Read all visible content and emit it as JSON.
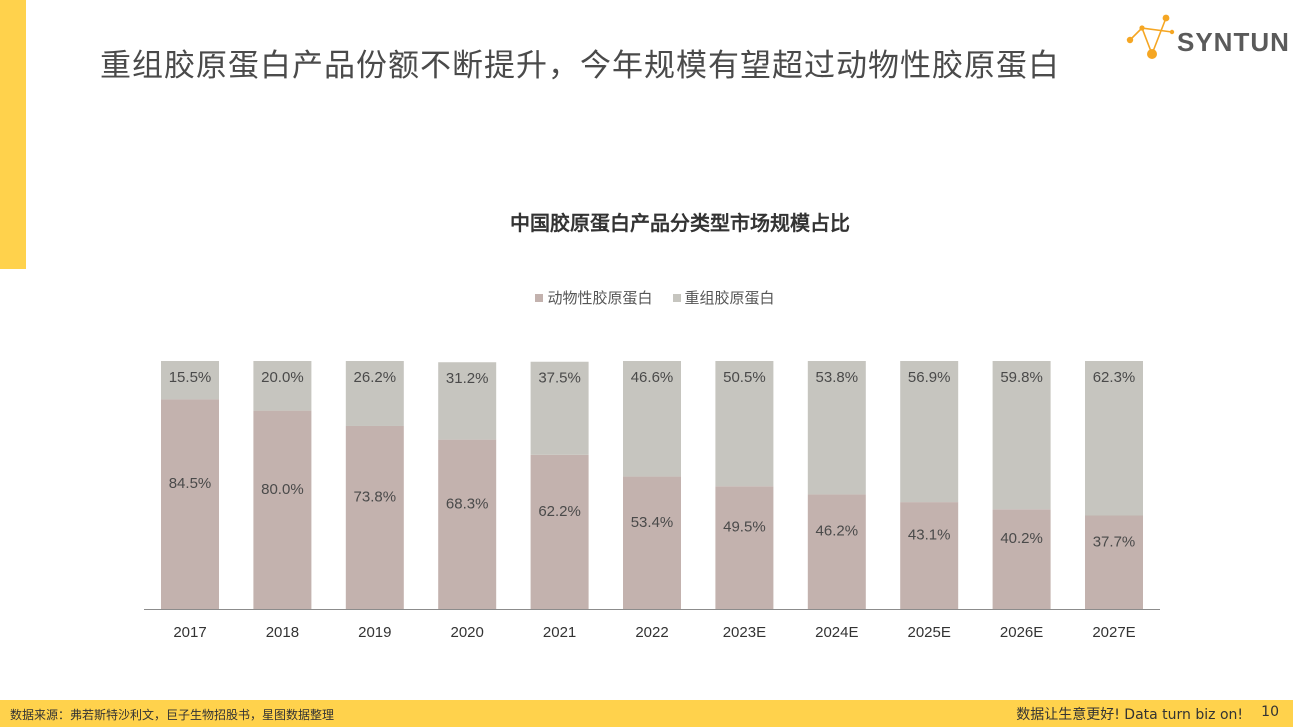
{
  "header": {
    "title": "重组胶原蛋白产品份额不断提升，今年规模有望超过动物性胶原蛋白",
    "logo_text": "SYNTUN"
  },
  "colors": {
    "accent": "#ffd24c",
    "animal": "#c3b2ae",
    "recombinant": "#c6c5bf"
  },
  "chart_data": {
    "type": "bar",
    "stacked": true,
    "title": "中国胶原蛋白产品分类型市场规模占比",
    "categories": [
      "2017",
      "2018",
      "2019",
      "2020",
      "2021",
      "2022",
      "2023E",
      "2024E",
      "2025E",
      "2026E",
      "2027E"
    ],
    "series": [
      {
        "name": "动物性胶原蛋白",
        "values": [
          84.5,
          80.0,
          73.8,
          68.3,
          62.2,
          53.4,
          49.5,
          46.2,
          43.1,
          40.2,
          37.7
        ],
        "labels": [
          "84.5%",
          "80.0%",
          "73.8%",
          "68.3%",
          "62.2%",
          "53.4%",
          "49.5%",
          "46.2%",
          "43.1%",
          "40.2%",
          "37.7%"
        ]
      },
      {
        "name": "重组胶原蛋白",
        "values": [
          15.5,
          20.0,
          26.2,
          31.2,
          37.5,
          46.6,
          50.5,
          53.8,
          56.9,
          59.8,
          62.3
        ],
        "labels": [
          "15.5%",
          "20.0%",
          "26.2%",
          "31.2%",
          "37.5%",
          "46.6%",
          "50.5%",
          "53.8%",
          "56.9%",
          "59.8%",
          "62.3%"
        ]
      }
    ],
    "ylim": [
      0,
      100
    ],
    "legend_position": "top",
    "grid": false
  },
  "footer": {
    "source": "数据来源：弗若斯特沙利文，巨子生物招股书，星图数据整理",
    "slogan": "数据让生意更好! Data turn biz on!",
    "page_number": "10"
  }
}
